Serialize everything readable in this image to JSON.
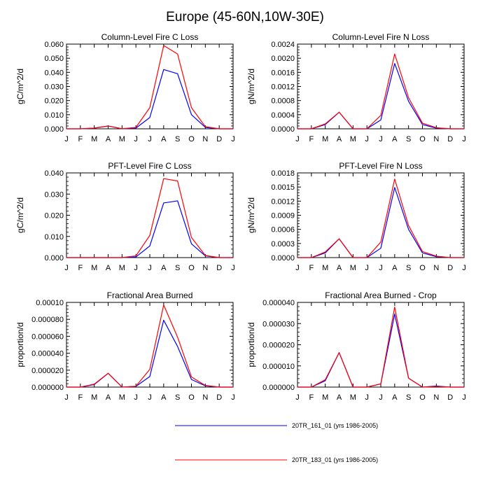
{
  "figure": {
    "title": "Europe (45-60N,10W-30E)",
    "colors": {
      "run1": "#0000ff",
      "run2": "#ff0000",
      "axis": "#000000"
    }
  },
  "legend": [
    {
      "label": "20TR_161_01 (yrs 1986-2005)",
      "color": "#0000ff"
    },
    {
      "label": "20TR_183_01 (yrs 1986-2005)",
      "color": "#ff0000"
    }
  ],
  "chart_data": [
    {
      "type": "line",
      "title": "Column-Level Fire C Loss",
      "ylabel": "gC/m^2/d",
      "categories": [
        "J",
        "F",
        "M",
        "A",
        "M",
        "J",
        "J",
        "A",
        "S",
        "O",
        "N",
        "D",
        "J"
      ],
      "ylim": [
        0,
        0.06
      ],
      "yticks": [
        "0.000",
        "0.010",
        "0.020",
        "0.030",
        "0.040",
        "0.050",
        "0.060"
      ],
      "series": [
        {
          "name": "20TR_161_01 (yrs 1986-2005)",
          "color": "#0000ff",
          "values": [
            0,
            0,
            0.0005,
            0.002,
            0,
            0.0005,
            0.008,
            0.042,
            0.039,
            0.01,
            0.001,
            0,
            0
          ]
        },
        {
          "name": "20TR_183_01 (yrs 1986-2005)",
          "color": "#ff0000",
          "values": [
            0,
            0,
            0.0005,
            0.002,
            0,
            0.001,
            0.015,
            0.059,
            0.053,
            0.015,
            0.0015,
            0,
            0
          ]
        }
      ]
    },
    {
      "type": "line",
      "title": "Column-Level Fire N Loss",
      "ylabel": "gN/m^2/d",
      "categories": [
        "J",
        "F",
        "M",
        "A",
        "M",
        "J",
        "J",
        "A",
        "S",
        "O",
        "N",
        "D",
        "J"
      ],
      "ylim": [
        0,
        0.0024
      ],
      "yticks": [
        "0.0000",
        "0.0004",
        "0.0008",
        "0.0012",
        "0.0016",
        "0.0020",
        "0.0024"
      ],
      "series": [
        {
          "name": "20TR_161_01 (yrs 1986-2005)",
          "color": "#0000ff",
          "values": [
            0,
            0,
            0.00012,
            0.00047,
            0,
            0,
            0.00025,
            0.00185,
            0.00078,
            0.00012,
            2e-05,
            0,
            0
          ]
        },
        {
          "name": "20TR_183_01 (yrs 1986-2005)",
          "color": "#ff0000",
          "values": [
            0,
            0,
            0.00014,
            0.00047,
            0,
            0,
            0.00038,
            0.00212,
            0.00088,
            0.00016,
            3e-05,
            0,
            0
          ]
        }
      ]
    },
    {
      "type": "line",
      "title": "PFT-Level Fire C Loss",
      "ylabel": "gC/m^2/d",
      "categories": [
        "J",
        "F",
        "M",
        "A",
        "M",
        "J",
        "J",
        "A",
        "S",
        "O",
        "N",
        "D",
        "J"
      ],
      "ylim": [
        0,
        0.04
      ],
      "yticks": [
        "0.000",
        "0.010",
        "0.020",
        "0.030",
        "0.040"
      ],
      "series": [
        {
          "name": "20TR_161_01 (yrs 1986-2005)",
          "color": "#0000ff",
          "values": [
            0,
            0,
            0,
            0,
            0,
            0.0003,
            0.0055,
            0.0258,
            0.0268,
            0.0065,
            0.0008,
            0,
            0
          ]
        },
        {
          "name": "20TR_183_01 (yrs 1986-2005)",
          "color": "#ff0000",
          "values": [
            0,
            0,
            0,
            0,
            0,
            0.0008,
            0.0105,
            0.0373,
            0.0362,
            0.0095,
            0.001,
            0,
            0
          ]
        }
      ]
    },
    {
      "type": "line",
      "title": "PFT-Level Fire N Loss",
      "ylabel": "gN/m^2/d",
      "categories": [
        "J",
        "F",
        "M",
        "A",
        "M",
        "J",
        "J",
        "A",
        "S",
        "O",
        "N",
        "D",
        "J"
      ],
      "ylim": [
        0,
        0.0018
      ],
      "yticks": [
        "0.0000",
        "0.0003",
        "0.0006",
        "0.0009",
        "0.0012",
        "0.0015",
        "0.0018"
      ],
      "series": [
        {
          "name": "20TR_161_01 (yrs 1986-2005)",
          "color": "#0000ff",
          "values": [
            0,
            0,
            0.0001,
            0.0004,
            0,
            0,
            0.0002,
            0.00149,
            0.0006,
            0.0001,
            2e-05,
            0,
            0
          ]
        },
        {
          "name": "20TR_183_01 (yrs 1986-2005)",
          "color": "#ff0000",
          "values": [
            0,
            0,
            0.00012,
            0.0004,
            0,
            0,
            0.00033,
            0.00167,
            0.00068,
            0.00013,
            3e-05,
            0,
            0
          ]
        }
      ]
    },
    {
      "type": "line",
      "title": "Fractional Area Burned",
      "ylabel": "proportion/d",
      "categories": [
        "J",
        "F",
        "M",
        "A",
        "M",
        "J",
        "J",
        "A",
        "S",
        "O",
        "N",
        "D",
        "J"
      ],
      "ylim": [
        0,
        0.0001
      ],
      "yticks": [
        "0.000000",
        "0.000020",
        "0.000040",
        "0.000060",
        "0.000080",
        "0.00010"
      ],
      "series": [
        {
          "name": "20TR_161_01 (yrs 1986-2005)",
          "color": "#0000ff",
          "values": [
            0,
            0,
            3e-06,
            1.63e-05,
            0,
            8e-07,
            1.25e-05,
            7.9e-05,
            4.8e-05,
            9e-06,
            1.5e-06,
            0,
            0
          ]
        },
        {
          "name": "20TR_183_01 (yrs 1986-2005)",
          "color": "#ff0000",
          "values": [
            0,
            0,
            3.5e-06,
            1.63e-05,
            0,
            1e-06,
            2.1e-05,
            9.7e-05,
            5.9e-05,
            1.2e-05,
            2e-06,
            0,
            0
          ]
        }
      ]
    },
    {
      "type": "line",
      "title": "Fractional Area Burned - Crop",
      "ylabel": "proportion/d",
      "categories": [
        "J",
        "F",
        "M",
        "A",
        "M",
        "J",
        "J",
        "A",
        "S",
        "O",
        "N",
        "D",
        "J"
      ],
      "ylim": [
        0,
        4e-05
      ],
      "yticks": [
        "0.000000",
        "0.000010",
        "0.000020",
        "0.000030",
        "0.000040"
      ],
      "series": [
        {
          "name": "20TR_161_01 (yrs 1986-2005)",
          "color": "#0000ff",
          "values": [
            0,
            0,
            3e-06,
            1.63e-05,
            0,
            0,
            1.5e-06,
            3.45e-05,
            4.2e-06,
            0,
            5e-07,
            0,
            0
          ]
        },
        {
          "name": "20TR_183_01 (yrs 1986-2005)",
          "color": "#ff0000",
          "values": [
            0,
            0,
            3.5e-06,
            1.63e-05,
            0,
            0,
            1.5e-06,
            3.78e-05,
            4.2e-06,
            0,
            3e-07,
            0,
            0
          ]
        }
      ]
    }
  ]
}
